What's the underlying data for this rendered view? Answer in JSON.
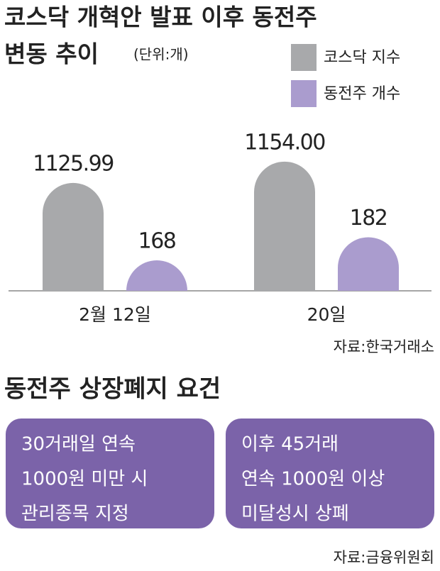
{
  "chart_data": {
    "type": "bar",
    "title": [
      "코스닥 개혁안 발표 이후 동전주",
      "변동 추이"
    ],
    "unit": "(단위:개)",
    "categories": [
      "2월 12일",
      "20일"
    ],
    "series": [
      {
        "name": "코스닥 지수",
        "color": "#a8a9ab",
        "values": [
          1125.99,
          1154.0
        ],
        "value_labels": [
          "1125.99",
          "1154.00"
        ]
      },
      {
        "name": "동전주 개수",
        "color": "#aa9cce",
        "values": [
          168,
          182
        ],
        "axis": "y2"
      }
    ],
    "ylim": [
      984,
      1180
    ],
    "y2lim": [
      150,
      239
    ],
    "source": "자료:한국거래소"
  },
  "criteria": {
    "title": "동전주 상장폐지 요건",
    "boxes": [
      {
        "lines": [
          "30거래일 연속",
          "1000원 미만 시",
          "관리종목 지정"
        ]
      },
      {
        "lines": [
          "이후 45거래",
          "연속 1000원 이상",
          "미달성시 상폐"
        ]
      }
    ],
    "source": "자료:금융위원회"
  }
}
